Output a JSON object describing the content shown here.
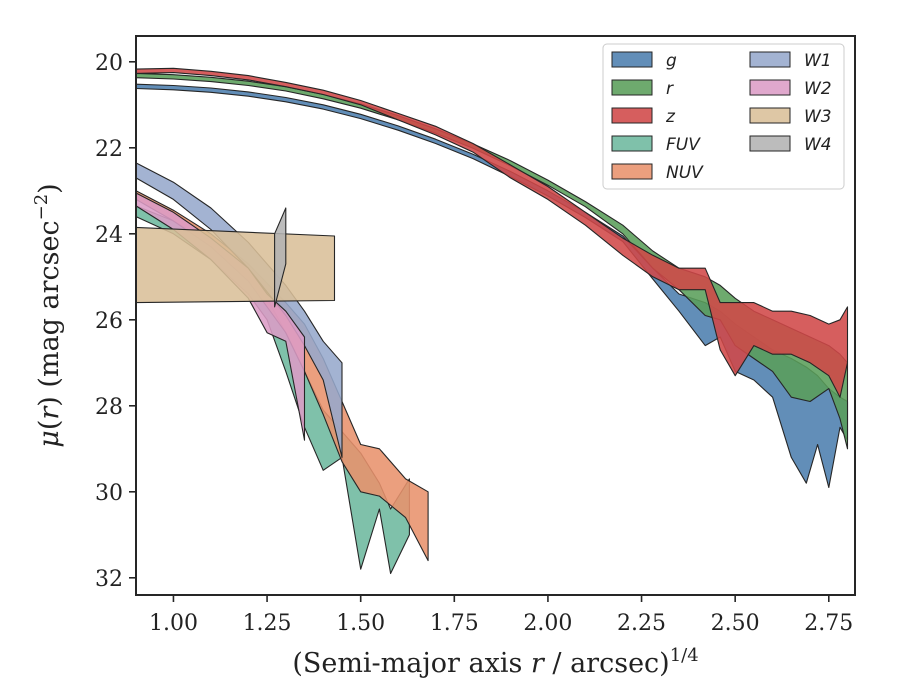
{
  "chart_data": {
    "type": "area",
    "xlabel": "(Semi-major axis r / arcsec)^1/4",
    "ylabel": "μ(r) (mag arcsec^−2)",
    "xlim": [
      0.9,
      2.82
    ],
    "ylim": [
      32.4,
      19.4
    ],
    "y_inverted": true,
    "xticks": [
      1.0,
      1.25,
      1.5,
      1.75,
      2.0,
      2.25,
      2.5,
      2.75
    ],
    "xtick_labels": [
      "1.00",
      "1.25",
      "1.50",
      "1.75",
      "2.00",
      "2.25",
      "2.50",
      "2.75"
    ],
    "yticks": [
      20,
      22,
      24,
      26,
      28,
      30,
      32
    ],
    "ytick_labels": [
      "20",
      "22",
      "24",
      "26",
      "28",
      "30",
      "32"
    ],
    "grid": false,
    "legend": {
      "placement": "top-right",
      "columns": 2
    },
    "series": [
      {
        "name": "g",
        "color": "#4c7eae",
        "points": [
          [
            0.9,
            20.52,
            20.62
          ],
          [
            1.0,
            20.55,
            20.65
          ],
          [
            1.1,
            20.61,
            20.71
          ],
          [
            1.2,
            20.7,
            20.8
          ],
          [
            1.3,
            20.83,
            20.93
          ],
          [
            1.4,
            21.0,
            21.1
          ],
          [
            1.5,
            21.22,
            21.32
          ],
          [
            1.6,
            21.49,
            21.59
          ],
          [
            1.7,
            21.8,
            21.9
          ],
          [
            1.8,
            22.15,
            22.25
          ],
          [
            1.9,
            22.55,
            22.67
          ],
          [
            2.0,
            23.0,
            23.12
          ],
          [
            2.1,
            23.5,
            23.62
          ],
          [
            2.2,
            24.05,
            24.18
          ],
          [
            2.28,
            24.8,
            25.05
          ],
          [
            2.35,
            25.4,
            25.8
          ],
          [
            2.42,
            25.6,
            26.6
          ],
          [
            2.46,
            25.8,
            26.4
          ],
          [
            2.5,
            26.1,
            27.2
          ],
          [
            2.55,
            26.4,
            27.4
          ],
          [
            2.6,
            26.7,
            27.8
          ],
          [
            2.65,
            26.9,
            29.2
          ],
          [
            2.69,
            27.1,
            29.8
          ],
          [
            2.72,
            27.3,
            28.9
          ],
          [
            2.75,
            27.6,
            29.9
          ],
          [
            2.78,
            27.8,
            28.5
          ],
          [
            2.8,
            27.9,
            28.8
          ]
        ]
      },
      {
        "name": "r",
        "color": "#5a9e5a",
        "points": [
          [
            0.9,
            20.27,
            20.37
          ],
          [
            1.0,
            20.3,
            20.4
          ],
          [
            1.1,
            20.36,
            20.46
          ],
          [
            1.2,
            20.45,
            20.55
          ],
          [
            1.3,
            20.58,
            20.68
          ],
          [
            1.4,
            20.76,
            20.86
          ],
          [
            1.5,
            20.98,
            21.08
          ],
          [
            1.6,
            21.25,
            21.35
          ],
          [
            1.7,
            21.56,
            21.66
          ],
          [
            1.8,
            21.91,
            22.01
          ],
          [
            1.9,
            22.3,
            22.42
          ],
          [
            2.0,
            22.75,
            22.87
          ],
          [
            2.1,
            23.25,
            23.37
          ],
          [
            2.2,
            23.8,
            24.0
          ],
          [
            2.28,
            24.4,
            24.8
          ],
          [
            2.35,
            24.8,
            25.3
          ],
          [
            2.42,
            25.0,
            25.9
          ],
          [
            2.46,
            25.2,
            26.0
          ],
          [
            2.5,
            25.5,
            26.6
          ],
          [
            2.55,
            25.8,
            26.9
          ],
          [
            2.6,
            26.0,
            27.2
          ],
          [
            2.65,
            26.2,
            27.8
          ],
          [
            2.7,
            26.4,
            27.9
          ],
          [
            2.75,
            26.6,
            27.6
          ],
          [
            2.78,
            26.8,
            28.3
          ],
          [
            2.8,
            27.0,
            29.0
          ]
        ]
      },
      {
        "name": "z",
        "color": "#d04848",
        "points": [
          [
            0.9,
            20.17,
            20.27
          ],
          [
            1.0,
            20.15,
            20.25
          ],
          [
            1.1,
            20.22,
            20.32
          ],
          [
            1.2,
            20.32,
            20.42
          ],
          [
            1.3,
            20.48,
            20.58
          ],
          [
            1.4,
            20.66,
            20.76
          ],
          [
            1.5,
            20.9,
            21.0
          ],
          [
            1.6,
            21.2,
            21.35
          ],
          [
            1.7,
            21.5,
            21.7
          ],
          [
            1.8,
            21.9,
            22.1
          ],
          [
            1.9,
            22.4,
            22.7
          ],
          [
            2.0,
            22.9,
            23.2
          ],
          [
            2.1,
            23.5,
            23.8
          ],
          [
            2.2,
            24.1,
            24.5
          ],
          [
            2.28,
            24.5,
            25.0
          ],
          [
            2.35,
            24.8,
            25.3
          ],
          [
            2.42,
            24.8,
            25.3
          ],
          [
            2.46,
            25.6,
            26.7
          ],
          [
            2.5,
            25.6,
            27.3
          ],
          [
            2.55,
            25.6,
            26.6
          ],
          [
            2.6,
            25.8,
            26.8
          ],
          [
            2.65,
            25.8,
            26.8
          ],
          [
            2.7,
            25.9,
            27.0
          ],
          [
            2.75,
            26.1,
            27.3
          ],
          [
            2.78,
            26.0,
            27.8
          ],
          [
            2.8,
            25.7,
            27.0
          ]
        ]
      },
      {
        "name": "FUV",
        "color": "#6db89e",
        "points": [
          [
            0.9,
            23.35,
            23.6
          ],
          [
            1.0,
            23.7,
            24.0
          ],
          [
            1.1,
            24.2,
            24.6
          ],
          [
            1.2,
            24.9,
            25.4
          ],
          [
            1.25,
            25.5,
            26.0
          ],
          [
            1.3,
            26.3,
            27.2
          ],
          [
            1.35,
            27.2,
            28.5
          ],
          [
            1.4,
            28.1,
            29.5
          ],
          [
            1.45,
            28.6,
            29.2
          ],
          [
            1.5,
            29.1,
            31.8
          ],
          [
            1.55,
            29.8,
            30.4
          ],
          [
            1.58,
            30.4,
            31.9
          ],
          [
            1.63,
            29.7,
            31.0
          ]
        ]
      },
      {
        "name": "NUV",
        "color": "#e8926c",
        "points": [
          [
            0.9,
            23.0,
            23.2
          ],
          [
            1.0,
            23.45,
            23.7
          ],
          [
            1.1,
            24.0,
            24.3
          ],
          [
            1.2,
            24.7,
            25.1
          ],
          [
            1.3,
            25.6,
            26.3
          ],
          [
            1.35,
            26.1,
            27.2
          ],
          [
            1.4,
            26.9,
            28.2
          ],
          [
            1.45,
            27.9,
            29.3
          ],
          [
            1.5,
            28.9,
            30.0
          ],
          [
            1.55,
            29.0,
            30.1
          ],
          [
            1.62,
            29.7,
            30.6
          ],
          [
            1.68,
            30.0,
            31.6
          ]
        ]
      },
      {
        "name": "W1",
        "color": "#96a8cc",
        "points": [
          [
            0.9,
            22.35,
            22.7
          ],
          [
            1.0,
            22.8,
            23.2
          ],
          [
            1.1,
            23.4,
            23.9
          ],
          [
            1.2,
            24.2,
            24.8
          ],
          [
            1.3,
            25.2,
            25.9
          ],
          [
            1.35,
            25.8,
            26.6
          ],
          [
            1.4,
            26.5,
            27.4
          ],
          [
            1.45,
            27.0,
            29.2
          ]
        ]
      },
      {
        "name": "W2",
        "color": "#dc9cc6",
        "points": [
          [
            0.9,
            23.05,
            23.35
          ],
          [
            1.0,
            23.5,
            23.9
          ],
          [
            1.1,
            24.1,
            24.6
          ],
          [
            1.2,
            24.8,
            25.5
          ],
          [
            1.25,
            25.4,
            26.3
          ],
          [
            1.3,
            25.8,
            26.5
          ],
          [
            1.35,
            26.4,
            28.8
          ]
        ]
      },
      {
        "name": "W3",
        "color": "#d9bf98",
        "points": [
          [
            0.9,
            23.85,
            25.6
          ],
          [
            1.43,
            24.05,
            25.55
          ]
        ]
      },
      {
        "name": "W4",
        "color": "#b3b3b3",
        "points": [
          [
            1.27,
            24.0,
            25.7
          ],
          [
            1.3,
            23.4,
            24.7
          ]
        ]
      }
    ]
  }
}
